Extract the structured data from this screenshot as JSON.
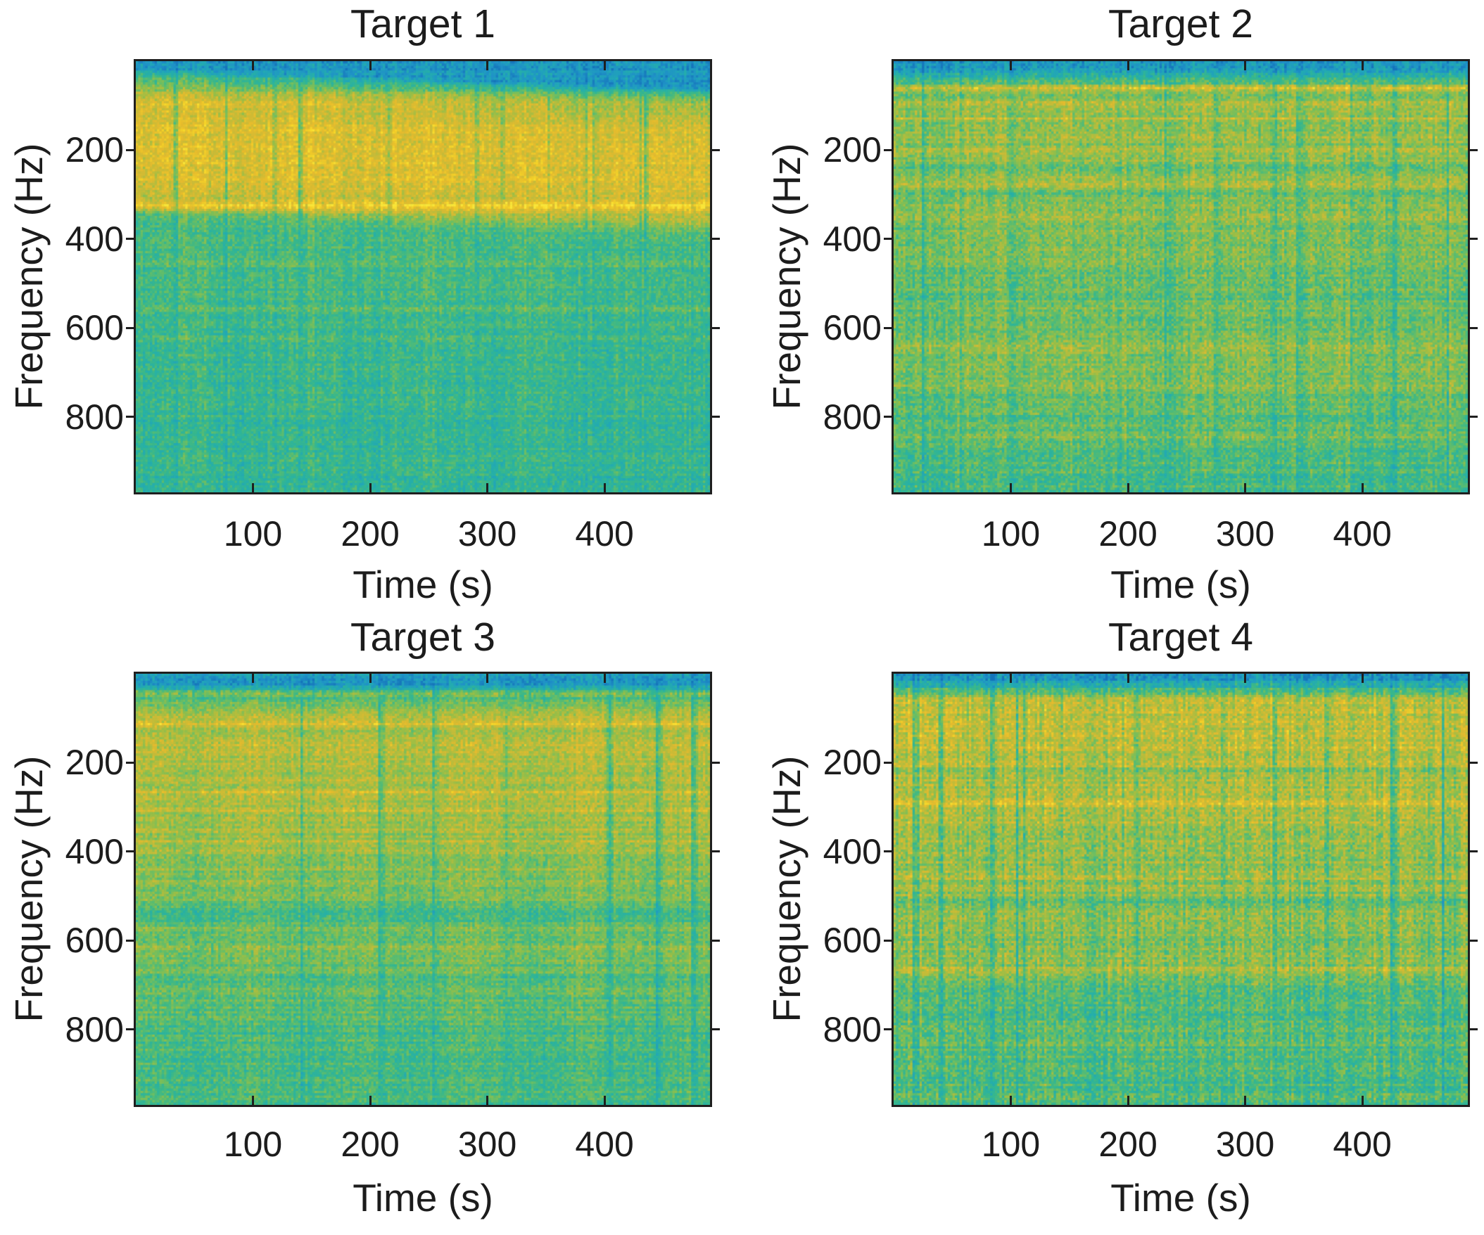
{
  "figure": {
    "background": "#ffffff",
    "text_color": "#1c1c1c",
    "axis_color": "#1f1f1f"
  },
  "colormap_stops": [
    [
      0.0,
      "#1572ba"
    ],
    [
      0.12,
      "#2092c8"
    ],
    [
      0.22,
      "#22a5ba"
    ],
    [
      0.32,
      "#28b1a7"
    ],
    [
      0.42,
      "#3ab88b"
    ],
    [
      0.52,
      "#68be67"
    ],
    [
      0.62,
      "#98bf48"
    ],
    [
      0.72,
      "#c6bc38"
    ],
    [
      0.82,
      "#e6bb2e"
    ],
    [
      0.92,
      "#f6d328"
    ],
    [
      1.0,
      "#fce83b"
    ]
  ],
  "chart_data": [
    {
      "type": "heatmap",
      "title": "Target 1",
      "xlabel": "Time (s)",
      "ylabel": "Frequency (Hz)",
      "xlim": [
        0,
        490
      ],
      "ylim": [
        0,
        970
      ],
      "y_axis_direction": "reversed",
      "xticks": [
        100,
        200,
        300,
        400
      ],
      "yticks": [
        200,
        400,
        600,
        800
      ],
      "legend": "none",
      "grid": false,
      "description": "Ship-radiated noise spectrogram: strong broadband yellow energy 60-320 Hz, sharp tonal at ~325 Hz, faint tonals near 470 and 580 Hz, teal low-energy background below 350 Hz with periodic vertical fading streaks",
      "texture": {
        "seed": 11,
        "shear": 0.045,
        "profile": [
          [
            0,
            0.17
          ],
          [
            0.018,
            0.18
          ],
          [
            0.03,
            0.4
          ],
          [
            0.055,
            0.6
          ],
          [
            0.09,
            0.74
          ],
          [
            0.14,
            0.8
          ],
          [
            0.24,
            0.81
          ],
          [
            0.3,
            0.76
          ],
          [
            0.33,
            0.7
          ],
          [
            0.355,
            0.52
          ],
          [
            0.38,
            0.45
          ],
          [
            0.5,
            0.44
          ],
          [
            0.62,
            0.42
          ],
          [
            0.8,
            0.4
          ],
          [
            1,
            0.385
          ]
        ],
        "h_lines": [
          {
            "p": 0.335,
            "a": 0.2,
            "w": 0.006
          },
          {
            "p": 0.1,
            "a": 0.05,
            "w": 0.012
          },
          {
            "p": 0.47,
            "a": 0.06,
            "w": 0.005
          },
          {
            "p": 0.575,
            "a": 0.11,
            "w": 0.0045
          },
          {
            "p": 0.64,
            "a": 0.04,
            "w": 0.006
          }
        ],
        "noise": {
          "row": 0.035,
          "col": 0.05,
          "speckle": 0.1,
          "streaks": 12
        }
      }
    },
    {
      "type": "heatmap",
      "title": "Target 2",
      "xlabel": "Time (s)",
      "ylabel": "Frequency (Hz)",
      "xlim": [
        0,
        490
      ],
      "ylim": [
        0,
        970
      ],
      "y_axis_direction": "reversed",
      "xticks": [
        100,
        200,
        300,
        400
      ],
      "yticks": [
        200,
        400,
        600,
        800
      ],
      "legend": "none",
      "grid": false,
      "description": "Speckled yellow-green spectrogram with bright tonal line near 60 Hz, several tonals 90-300 Hz, teal bands near 250 and 530-600 Hz, mottled yellow patches 550-850 Hz, teal bottom edge",
      "texture": {
        "seed": 22,
        "shear": 0,
        "profile": [
          [
            0,
            0.17
          ],
          [
            0.02,
            0.19
          ],
          [
            0.04,
            0.4
          ],
          [
            0.06,
            0.56
          ],
          [
            0.1,
            0.6
          ],
          [
            0.28,
            0.6
          ],
          [
            0.34,
            0.58
          ],
          [
            0.44,
            0.56
          ],
          [
            0.52,
            0.545
          ],
          [
            0.62,
            0.55
          ],
          [
            0.72,
            0.56
          ],
          [
            0.8,
            0.53
          ],
          [
            0.88,
            0.5
          ],
          [
            0.94,
            0.46
          ],
          [
            1,
            0.43
          ]
        ],
        "h_lines": [
          {
            "p": 0.062,
            "a": 0.24,
            "w": 0.004
          },
          {
            "p": 0.098,
            "a": 0.1,
            "w": 0.004
          },
          {
            "p": 0.134,
            "a": 0.12,
            "w": 0.004
          },
          {
            "p": 0.176,
            "a": 0.07,
            "w": 0.004
          },
          {
            "p": 0.205,
            "a": 0.09,
            "w": 0.004
          },
          {
            "p": 0.252,
            "a": -0.09,
            "w": 0.007
          },
          {
            "p": 0.285,
            "a": 0.11,
            "w": 0.004
          },
          {
            "p": 0.305,
            "a": -0.07,
            "w": 0.005
          },
          {
            "p": 0.36,
            "a": 0.06,
            "w": 0.008
          },
          {
            "p": 0.545,
            "a": -0.07,
            "w": 0.009
          },
          {
            "p": 0.6,
            "a": -0.05,
            "w": 0.007
          },
          {
            "p": 0.665,
            "a": 0.06,
            "w": 0.009
          },
          {
            "p": 0.76,
            "a": 0.06,
            "w": 0.005
          },
          {
            "p": 0.825,
            "a": -0.07,
            "w": 0.006
          },
          {
            "p": 0.875,
            "a": 0.05,
            "w": 0.004
          }
        ],
        "noise": {
          "row": 0.045,
          "col": 0.06,
          "speckle": 0.115,
          "streaks": 12
        }
      }
    },
    {
      "type": "heatmap",
      "title": "Target 3",
      "xlabel": "Time (s)",
      "ylabel": "Frequency (Hz)",
      "xlim": [
        0,
        490
      ],
      "ylim": [
        0,
        970
      ],
      "y_axis_direction": "reversed",
      "xticks": [
        100,
        200,
        300,
        400
      ],
      "yticks": [
        200,
        400,
        600,
        800
      ],
      "legend": "none",
      "grid": false,
      "description": "Yellow-green spectrogram, bright tonals near 45, 110, 270 and 300 Hz, broad yellow-green band to ~450 Hz, dark teal band near 540-560 Hz, tonal near 620 Hz, teal-green speckled lower third",
      "texture": {
        "seed": 33,
        "shear": 0,
        "profile": [
          [
            0,
            0.16
          ],
          [
            0.025,
            0.17
          ],
          [
            0.05,
            0.45
          ],
          [
            0.08,
            0.62
          ],
          [
            0.12,
            0.66
          ],
          [
            0.22,
            0.67
          ],
          [
            0.34,
            0.64
          ],
          [
            0.44,
            0.6
          ],
          [
            0.5,
            0.57
          ],
          [
            0.555,
            0.5
          ],
          [
            0.6,
            0.55
          ],
          [
            0.66,
            0.53
          ],
          [
            0.72,
            0.5
          ],
          [
            0.8,
            0.47
          ],
          [
            0.9,
            0.45
          ],
          [
            1,
            0.44
          ]
        ],
        "h_lines": [
          {
            "p": 0.045,
            "a": 0.16,
            "w": 0.004
          },
          {
            "p": 0.115,
            "a": 0.15,
            "w": 0.0035
          },
          {
            "p": 0.165,
            "a": 0.09,
            "w": 0.0035
          },
          {
            "p": 0.21,
            "a": 0.07,
            "w": 0.0035
          },
          {
            "p": 0.275,
            "a": 0.14,
            "w": 0.004
          },
          {
            "p": 0.315,
            "a": 0.09,
            "w": 0.0035
          },
          {
            "p": 0.39,
            "a": 0.07,
            "w": 0.004
          },
          {
            "p": 0.565,
            "a": -0.08,
            "w": 0.012
          },
          {
            "p": 0.635,
            "a": 0.09,
            "w": 0.004
          },
          {
            "p": 0.71,
            "a": -0.04,
            "w": 0.008
          },
          {
            "p": 0.83,
            "a": -0.035,
            "w": 0.01
          }
        ],
        "noise": {
          "row": 0.05,
          "col": 0.04,
          "speckle": 0.1,
          "streaks": 8
        }
      }
    },
    {
      "type": "heatmap",
      "title": "Target 4",
      "xlabel": "Time (s)",
      "ylabel": "Frequency (Hz)",
      "xlim": [
        0,
        490
      ],
      "ylim": [
        0,
        970
      ],
      "y_axis_direction": "reversed",
      "xticks": [
        100,
        200,
        300,
        400
      ],
      "yticks": [
        200,
        400,
        600,
        800
      ],
      "legend": "none",
      "grid": false,
      "description": "Heavily cross-hatched yellow spectrogram above ~450 Hz with dense teal vertical streaks, teal band near 220 Hz, tonals near 460 and 670 Hz, teal speckled bottom quarter",
      "texture": {
        "seed": 44,
        "shear": 0,
        "profile": [
          [
            0,
            0.17
          ],
          [
            0.02,
            0.2
          ],
          [
            0.045,
            0.55
          ],
          [
            0.07,
            0.7
          ],
          [
            0.12,
            0.73
          ],
          [
            0.2,
            0.71
          ],
          [
            0.235,
            0.64
          ],
          [
            0.28,
            0.68
          ],
          [
            0.36,
            0.66
          ],
          [
            0.44,
            0.62
          ],
          [
            0.52,
            0.59
          ],
          [
            0.6,
            0.575
          ],
          [
            0.67,
            0.59
          ],
          [
            0.7,
            0.56
          ],
          [
            0.74,
            0.5
          ],
          [
            0.82,
            0.47
          ],
          [
            0.92,
            0.455
          ],
          [
            1,
            0.45
          ]
        ],
        "h_lines": [
          {
            "p": 0.065,
            "a": 0.08,
            "w": 0.006
          },
          {
            "p": 0.225,
            "a": -0.07,
            "w": 0.007
          },
          {
            "p": 0.3,
            "a": 0.07,
            "w": 0.005
          },
          {
            "p": 0.47,
            "a": 0.09,
            "w": 0.004
          },
          {
            "p": 0.53,
            "a": -0.07,
            "w": 0.005
          },
          {
            "p": 0.685,
            "a": 0.09,
            "w": 0.005
          },
          {
            "p": 0.755,
            "a": -0.05,
            "w": 0.007
          },
          {
            "p": 0.86,
            "a": 0.05,
            "w": 0.005
          }
        ],
        "noise": {
          "row": 0.055,
          "col": 0.075,
          "speckle": 0.125,
          "streaks": 16
        }
      }
    }
  ]
}
